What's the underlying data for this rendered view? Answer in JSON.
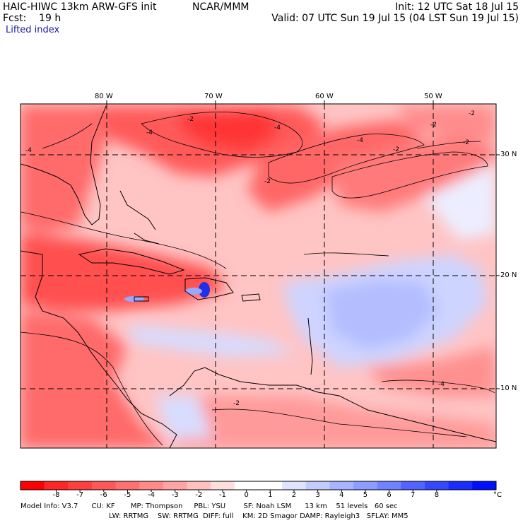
{
  "header": {
    "model_title": "HAIC-HIWC 13km ARW-GFS init",
    "org": "NCAR/MMM",
    "init": "Init: 12 UTC Sat 18 Jul 15",
    "forecast": "Fcst:    19 h",
    "valid": "Valid: 07 UTC Sun 19 Jul 15 (04 LST Sun 19 Jul 15)",
    "field_name": "Lifted index"
  },
  "map": {
    "lon_labels": [
      "80 W",
      "70 W",
      "60 W",
      "50 W"
    ],
    "lat_labels": [
      "30 N",
      "20 N",
      "10 N"
    ],
    "contour_labels": [
      "-4",
      "-4",
      "-4",
      "-2",
      "-2",
      "-2",
      "-2",
      "-2",
      "-2",
      "-2",
      "-4",
      "-4",
      "-2",
      "-2"
    ],
    "colors": {
      "neg_strong": "#ff3030",
      "neg_mid": "#ff7070",
      "neg_weak": "#ffb0b0",
      "neutral": "#ffffff",
      "pos_weak": "#d0d8ff",
      "pos_mid": "#9aa8ff",
      "pos_strong": "#2030ff"
    }
  },
  "colorbar": {
    "labels": [
      "-8",
      "-7",
      "-6",
      "-5",
      "-4",
      "-3",
      "-2",
      "-1",
      "0",
      "1",
      "2",
      "3",
      "4",
      "5",
      "6",
      "7",
      "8"
    ],
    "unit": "°C",
    "swatches": [
      "#ff0000",
      "#ff2626",
      "#ff4040",
      "#ff5858",
      "#ff7070",
      "#ff8a8a",
      "#ffa4a4",
      "#ffc0c0",
      "#ffdede",
      "#ffffff",
      "#ffffff",
      "#dee3ff",
      "#c4ccff",
      "#a8b4ff",
      "#8c9cff",
      "#6f82ff",
      "#5264ff",
      "#3547ff",
      "#1a2cff",
      "#0010ff"
    ]
  },
  "model_info": {
    "line1": "Model Info: V3.7      CU: KF       MP: Thompson     PBL: YSU        SF: Noah LSM      13 km    51 levels   60 sec",
    "line2": "LW: RRTMG    SW: RRTMG  DIFF: full    KM: 2D Smagor DAMP: Rayleigh3   SFLAY: MM5"
  }
}
